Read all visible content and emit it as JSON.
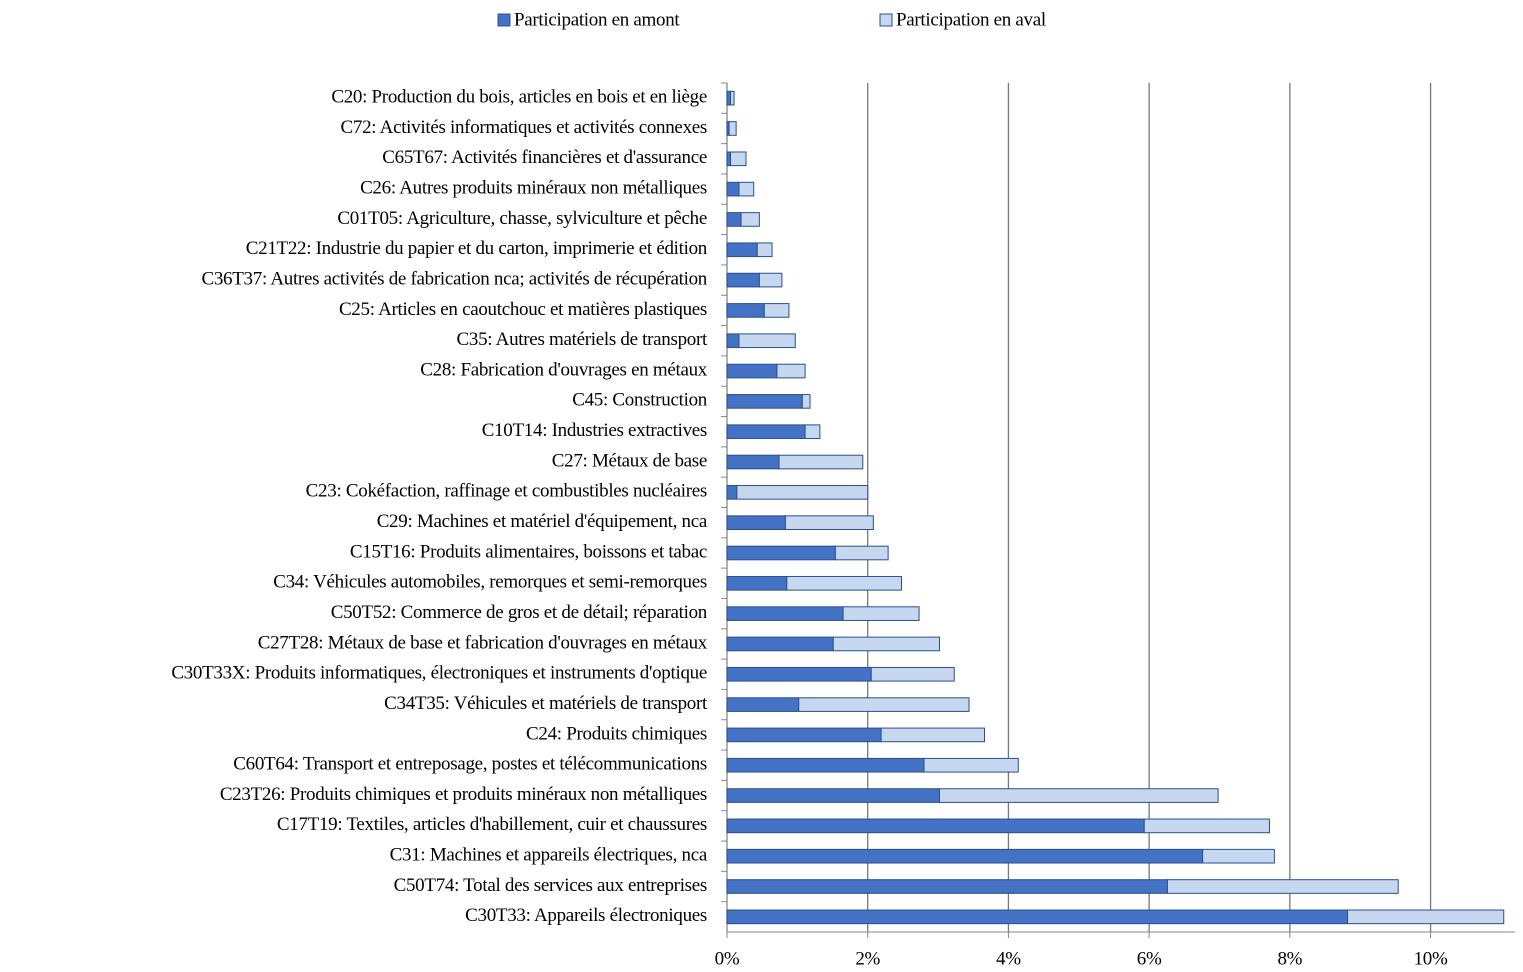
{
  "chart_data": {
    "type": "stacked_barh",
    "categories": [
      "C20: Production du bois, articles en bois et en liège",
      "C72: Activités informatiques et activités connexes",
      "C65T67: Activités financières et d'assurance",
      "C26: Autres produits minéraux non métalliques",
      "C01T05: Agriculture, chasse, sylviculture et pêche",
      "C21T22: Industrie du papier et du carton, imprimerie et édition",
      "C36T37: Autres activités de fabrication nca; activités de récupération",
      "C25: Articles en caoutchouc et matières plastiques",
      "C35: Autres matériels de transport",
      "C28: Fabrication d'ouvrages en métaux",
      "C45: Construction",
      "C10T14: Industries extractives",
      "C27: Métaux de base",
      "C23: Cokéfaction, raffinage et combustibles nucléaires",
      "C29: Machines et matériel d'équipement, nca",
      "C15T16: Produits alimentaires, boissons et tabac",
      "C34: Véhicules automobiles, remorques et semi-remorques",
      "C50T52: Commerce de gros et de détail; réparation",
      "C27T28: Métaux de base et fabrication d'ouvrages en métaux",
      "C30T33X: Produits informatiques, électroniques et instruments d'optique",
      "C34T35: Véhicules et matériels de transport",
      "C24: Produits chimiques",
      "C60T64: Transport et entreposage, postes et télécommunications",
      "C23T26: Produits chimiques et produits minéraux non métalliques",
      "C17T19: Textiles, articles d'habillement, cuir et chaussures",
      "C31: Machines et appareils électriques, nca",
      "C50T74: Total des services aux entreprises",
      "C30T33: Appareils électroniques"
    ],
    "series": [
      {
        "name": "Participation en amont",
        "color": "#4472c4",
        "values": [
          0.05,
          0.03,
          0.05,
          0.17,
          0.2,
          0.43,
          0.46,
          0.53,
          0.17,
          0.71,
          1.07,
          1.11,
          0.74,
          0.14,
          0.83,
          1.54,
          0.85,
          1.65,
          1.51,
          2.05,
          1.02,
          2.19,
          2.8,
          3.02,
          5.93,
          6.76,
          6.26,
          8.82
        ]
      },
      {
        "name": "Participation en aval",
        "color": "#c6d7f0",
        "values": [
          0.05,
          0.1,
          0.22,
          0.21,
          0.26,
          0.21,
          0.32,
          0.35,
          0.8,
          0.4,
          0.11,
          0.21,
          1.19,
          1.86,
          1.25,
          0.75,
          1.63,
          1.08,
          1.51,
          1.18,
          2.42,
          1.47,
          1.34,
          3.96,
          1.78,
          1.02,
          3.28,
          2.22
        ]
      }
    ],
    "xlim": [
      0,
      11.2
    ],
    "xticks": [
      {
        "value": 0,
        "label": "0%"
      },
      {
        "value": 2,
        "label": "2%"
      },
      {
        "value": 4,
        "label": "4%"
      },
      {
        "value": 6,
        "label": "6%"
      },
      {
        "value": 8,
        "label": "8%"
      },
      {
        "value": 10,
        "label": "10%"
      }
    ],
    "grid": true,
    "legend": "top"
  }
}
